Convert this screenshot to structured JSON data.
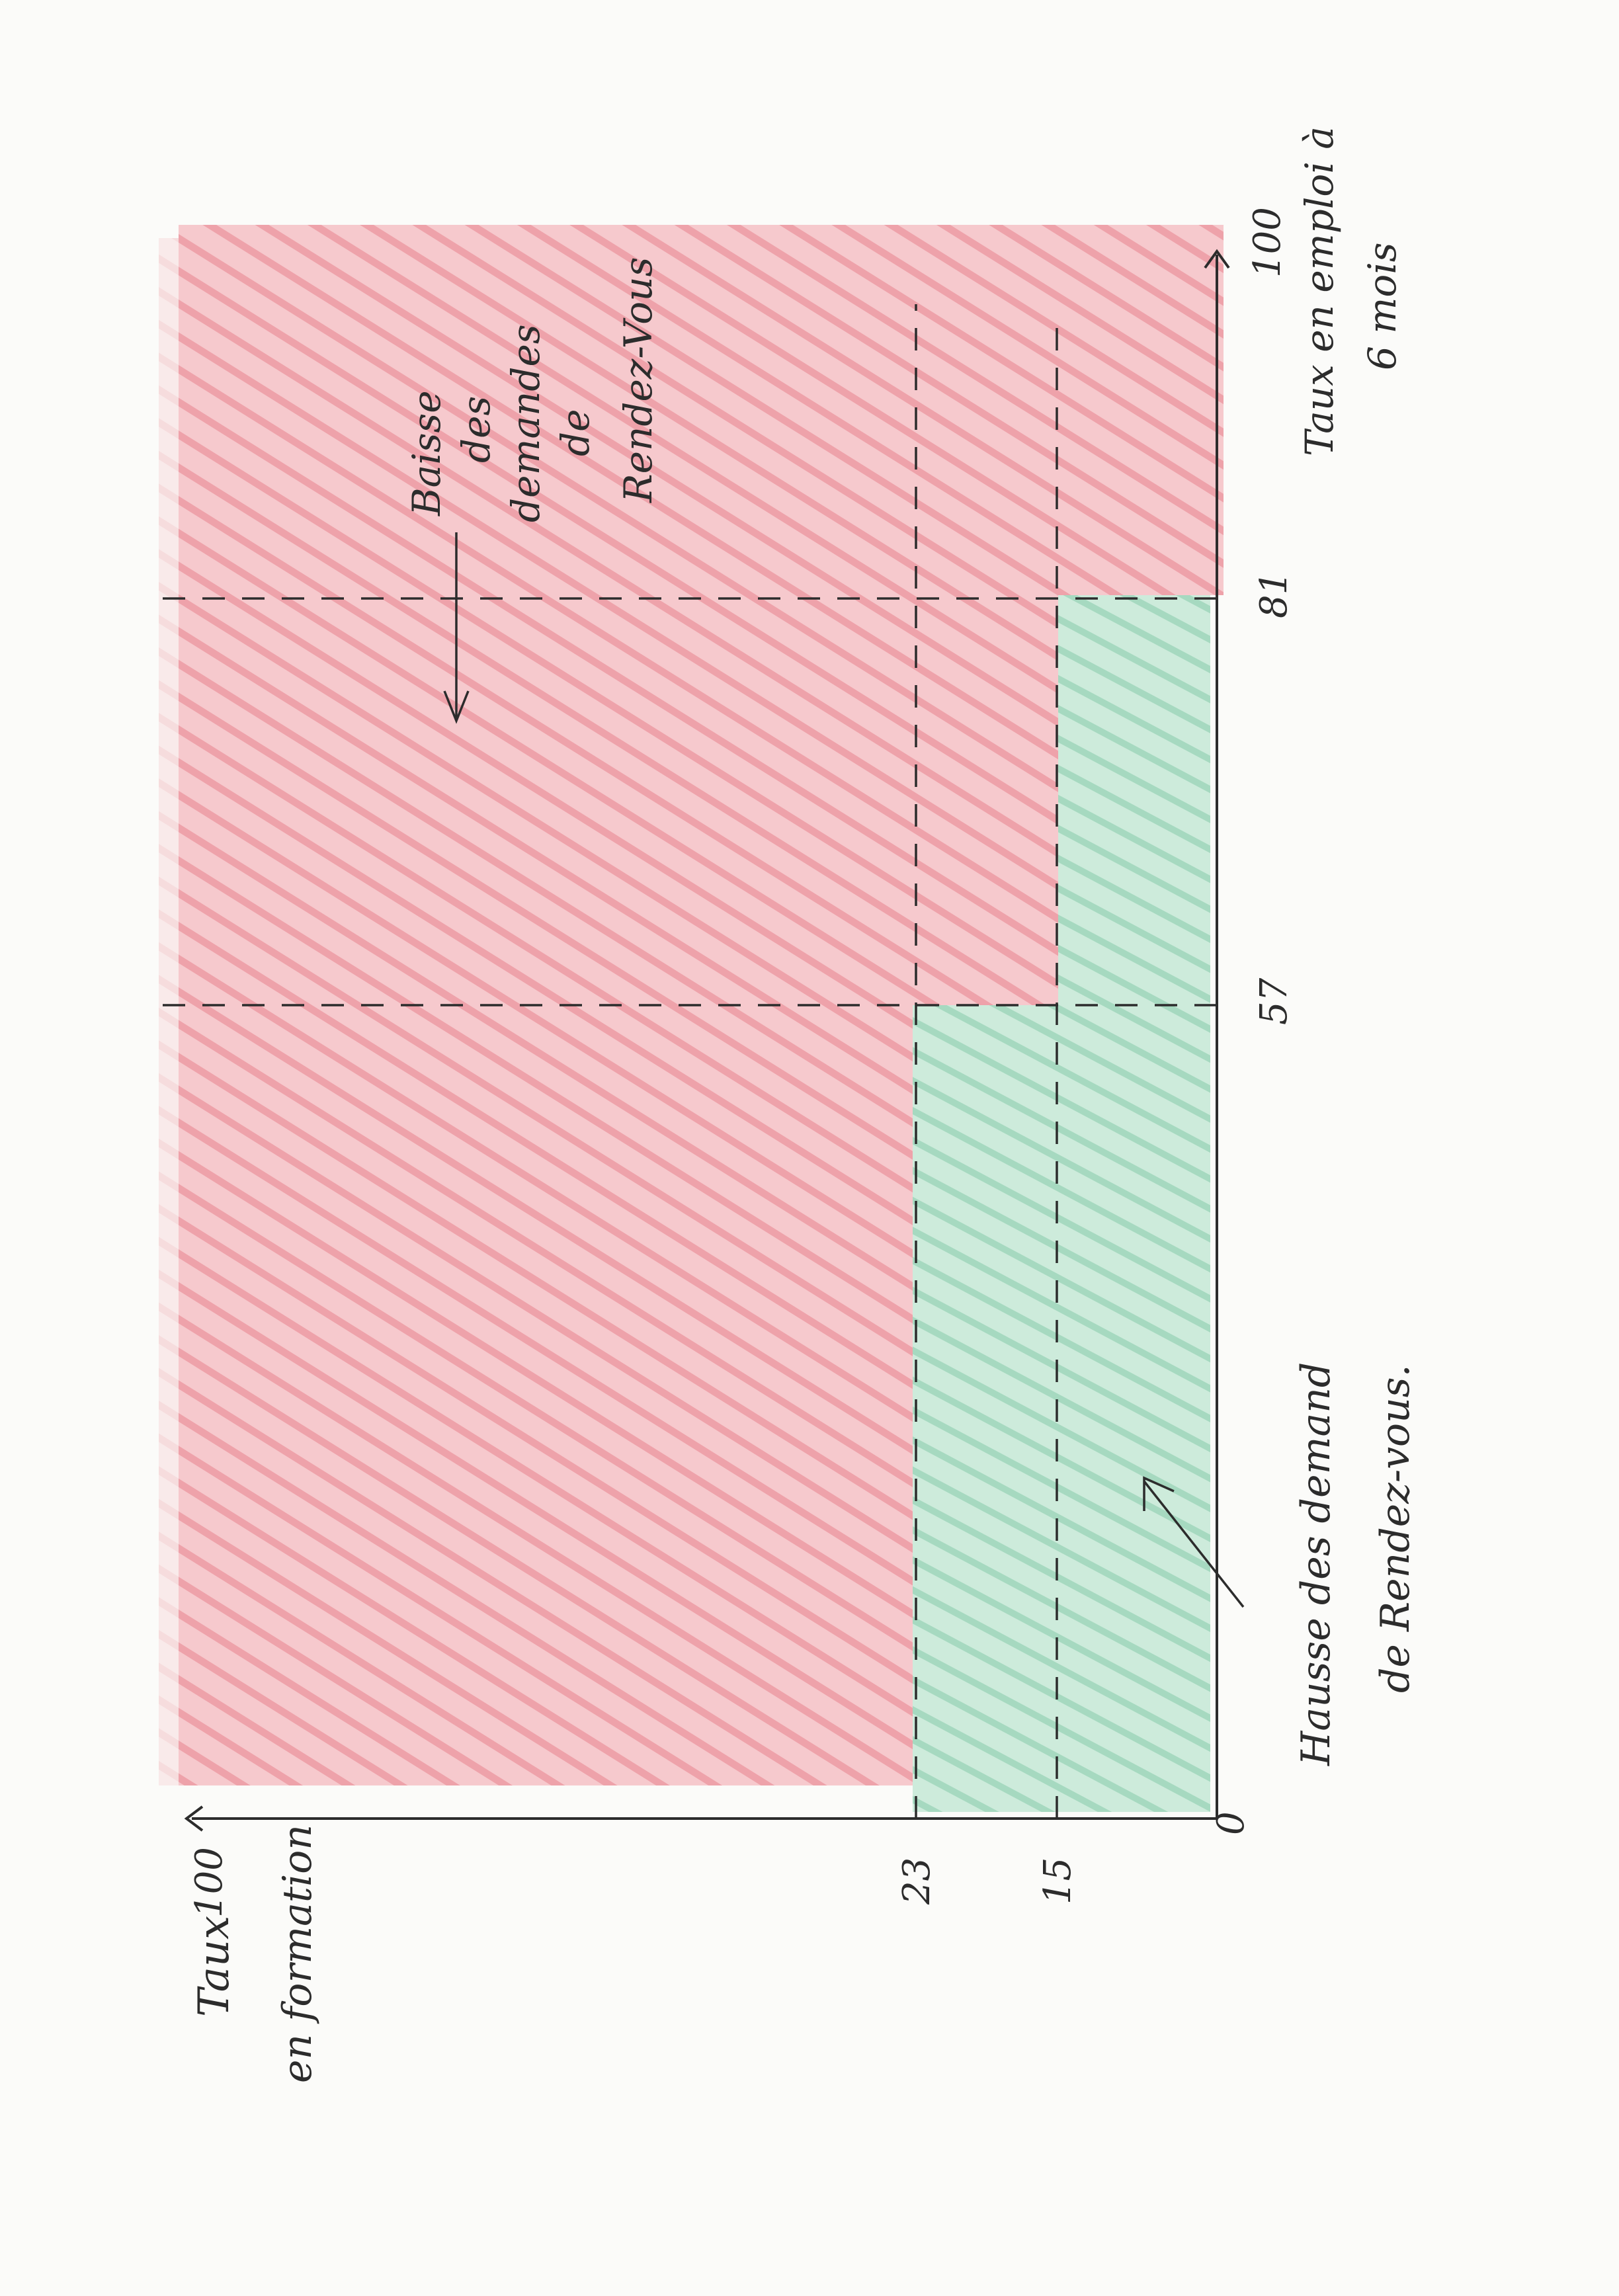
{
  "diagram": {
    "y_axis": {
      "label_line1": "Taux",
      "label_line2": "en formation",
      "max_label": "100",
      "ticks": [
        "23",
        "15"
      ],
      "origin": "0"
    },
    "x_axis": {
      "label_line1": "Taux en emploi à",
      "label_line2": "6 mois",
      "max_label": "100",
      "ticks": [
        "57",
        "81"
      ]
    },
    "annotations": {
      "red_zone": [
        "Baisse",
        "des",
        "demandes",
        "de",
        "Rendez-Vous"
      ],
      "green_zone": [
        "Hausse des demand",
        "de Rendez-vous."
      ]
    },
    "colors": {
      "red_zone": "#f0a3ab",
      "green_zone": "#a8dcc2",
      "ink": "#2c2c2c"
    },
    "regions": {
      "green_low_band": {
        "x_range": [
          0,
          81
        ],
        "y_range": [
          0,
          15
        ]
      },
      "green_mid_band": {
        "x_range": [
          0,
          57
        ],
        "y_range": [
          15,
          23
        ]
      },
      "red": "rest of plot area"
    }
  }
}
